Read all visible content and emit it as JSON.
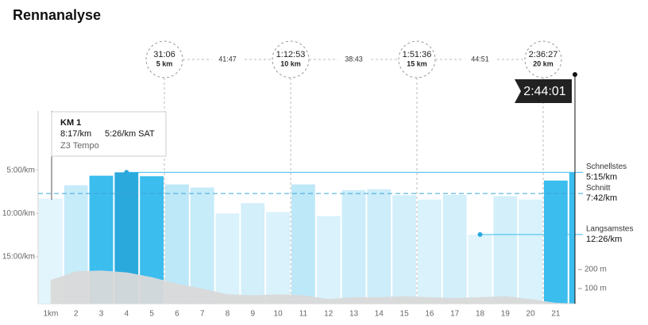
{
  "title": "Rennanalyse",
  "checkpoints": [
    {
      "time": "31:06",
      "distance": "5 km"
    },
    {
      "time": "1:12:53",
      "distance": "10 km"
    },
    {
      "time": "1:51:36",
      "distance": "15 km"
    },
    {
      "time": "2:36:27",
      "distance": "20 km"
    }
  ],
  "splits": [
    "41:47",
    "38:43",
    "44:51"
  ],
  "finish": "2:44:01",
  "tooltip": {
    "title": "KM 1",
    "pace": "8:17/km",
    "target": "5:26/km SAT",
    "zone": "Z3 Tempo"
  },
  "chart_data": {
    "type": "bar",
    "categories": [
      "1km",
      "2",
      "3",
      "4",
      "5",
      "6",
      "7",
      "8",
      "9",
      "10",
      "11",
      "12",
      "13",
      "14",
      "15",
      "16",
      "17",
      "18",
      "19",
      "20",
      "21",
      null
    ],
    "series": [
      {
        "values": [
          8.28,
          6.74,
          5.64,
          5.25,
          5.7,
          6.65,
          7.0,
          10.0,
          8.8,
          9.85,
          6.65,
          10.3,
          7.3,
          7.2,
          7.9,
          8.4,
          7.85,
          12.43,
          8.0,
          8.4,
          6.2,
          5.3
        ],
        "colors": [
          "#e2f5fc",
          "#c6ebf9",
          "#3bbdee",
          "#2aa9dc",
          "#3bbdee",
          "#bde8f8",
          "#c6ebf9",
          "#d9f2fb",
          "#d2effa",
          "#d9f2fb",
          "#bde8f8",
          "#d9f2fb",
          "#cdedfa",
          "#cdedfa",
          "#d2effa",
          "#d9f2fb",
          "#d2effa",
          "#e2f5fc",
          "#d2effa",
          "#d9f2fb",
          "#3bbdee",
          "#3bbdee"
        ]
      },
      {
        "type": "area",
        "axis": "y2",
        "color": "#d9d9d9",
        "values": [
          145,
          190,
          195,
          185,
          160,
          125,
          100,
          70,
          65,
          70,
          65,
          45,
          55,
          55,
          60,
          55,
          50,
          55,
          60,
          45,
          25,
          21
        ]
      }
    ],
    "ylim": [
      20.4,
      0
    ],
    "yticks": [
      {
        "value": 5,
        "label": "5:00/km"
      },
      {
        "value": 10,
        "label": "10:00/km"
      },
      {
        "value": 15,
        "label": "15:00/km"
      }
    ],
    "y2lim": [
      21,
      950
    ],
    "y2ticks": [
      {
        "value": 100,
        "label": "100 m"
      },
      {
        "value": 200,
        "label": "200 m"
      }
    ],
    "reference_lines": [
      {
        "label": "Schnellstes",
        "value": 5.25,
        "value_label": "5:15/km",
        "style": "solid"
      },
      {
        "label": "Schnitt",
        "value": 7.7,
        "value_label": "7:42/km",
        "style": "dashed"
      },
      {
        "label": "Langsamstes",
        "value": 12.43,
        "value_label": "12:26/km",
        "style": "dot"
      }
    ]
  }
}
